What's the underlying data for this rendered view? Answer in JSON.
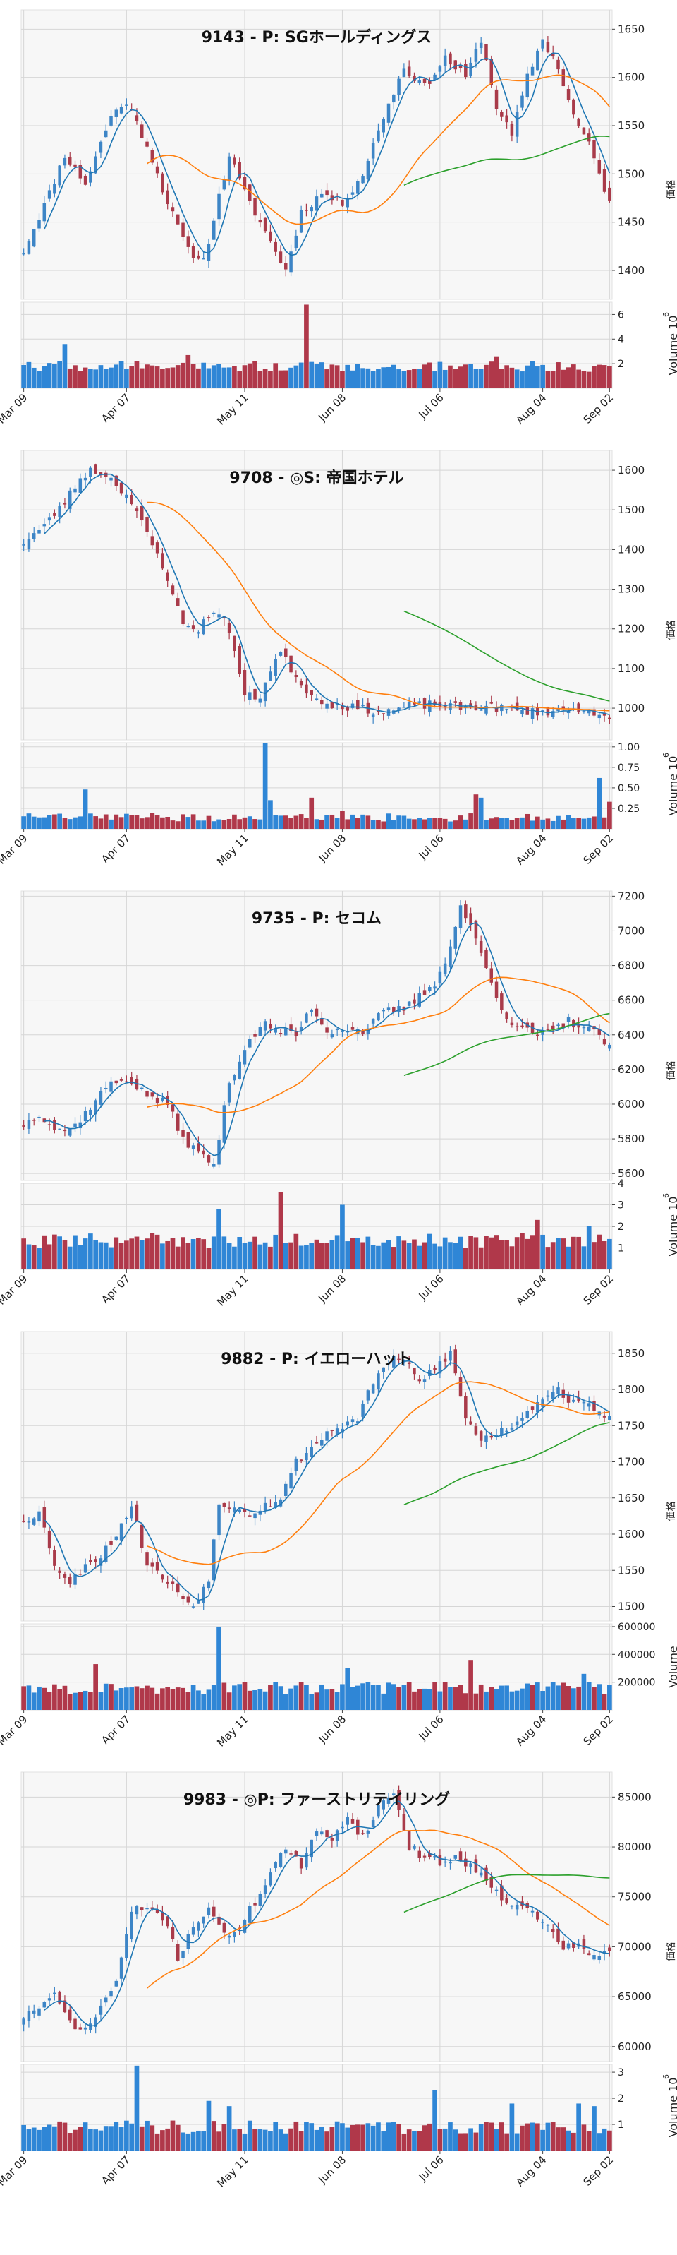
{
  "colors": {
    "up": "#3d85c6",
    "down": "#a93b4a",
    "vol_up": "#2f86d6",
    "vol_down": "#b0384a",
    "ma5": "#1f77b4",
    "ma25": "#ff7f0e",
    "ma75": "#2ca02c",
    "panel_bg": "#f7f7f7",
    "grid": "#d6d6d6"
  },
  "x_tick_labels": [
    "Mar 09",
    "Apr 07",
    "May 11",
    "Jun 08",
    "Jul 06",
    "Aug 04",
    "Sep 02"
  ],
  "chart_data": [
    {
      "type": "candlestick",
      "title": "9143 - P: SGホールディングス",
      "ylabel": "価格",
      "vol_label": "Volume",
      "vol_exp": "6",
      "ylim": [
        1370,
        1670
      ],
      "yticks": [
        1400,
        1450,
        1500,
        1550,
        1600,
        1650
      ],
      "vol_ylim": [
        0,
        7
      ],
      "vol_ticks": [
        2,
        4,
        6
      ],
      "anchors": [
        [
          0,
          1420
        ],
        [
          5,
          1480
        ],
        [
          8,
          1520
        ],
        [
          12,
          1490
        ],
        [
          17,
          1560
        ],
        [
          20,
          1575
        ],
        [
          24,
          1530
        ],
        [
          28,
          1470
        ],
        [
          32,
          1420
        ],
        [
          35,
          1410
        ],
        [
          40,
          1520
        ],
        [
          43,
          1480
        ],
        [
          47,
          1440
        ],
        [
          51,
          1400
        ],
        [
          54,
          1460
        ],
        [
          58,
          1480
        ],
        [
          62,
          1470
        ],
        [
          66,
          1500
        ],
        [
          70,
          1560
        ],
        [
          74,
          1610
        ],
        [
          78,
          1590
        ],
        [
          82,
          1620
        ],
        [
          86,
          1600
        ],
        [
          89,
          1640
        ],
        [
          92,
          1570
        ],
        [
          95,
          1540
        ],
        [
          98,
          1600
        ],
        [
          101,
          1640
        ],
        [
          104,
          1610
        ],
        [
          107,
          1560
        ],
        [
          110,
          1530
        ],
        [
          114,
          1470
        ]
      ],
      "vol_base": 1.6,
      "vol_amp": 0.9,
      "vol_spikes": [
        [
          8,
          3.6
        ],
        [
          32,
          2.7
        ],
        [
          55,
          6.8
        ],
        [
          92,
          2.6
        ]
      ],
      "seed": 11
    },
    {
      "type": "candlestick",
      "title": "9708 - ◎S: 帝国ホテル",
      "ylabel": "価格",
      "vol_label": "Volume",
      "vol_exp": "6",
      "ylim": [
        920,
        1650
      ],
      "yticks": [
        1000,
        1100,
        1200,
        1300,
        1400,
        1500,
        1600
      ],
      "vol_ylim": [
        0,
        1.05
      ],
      "vol_ticks": [
        0.25,
        0.5,
        0.75,
        1.0
      ],
      "vol_tick_labels": [
        "0.25",
        "0.50",
        "0.75",
        "1.00"
      ],
      "anchors": [
        [
          0,
          1420
        ],
        [
          4,
          1460
        ],
        [
          8,
          1520
        ],
        [
          11,
          1580
        ],
        [
          13,
          1600
        ],
        [
          16,
          1590
        ],
        [
          20,
          1540
        ],
        [
          24,
          1440
        ],
        [
          28,
          1330
        ],
        [
          31,
          1210
        ],
        [
          34,
          1200
        ],
        [
          37,
          1250
        ],
        [
          40,
          1200
        ],
        [
          43,
          1030
        ],
        [
          46,
          1030
        ],
        [
          48,
          1100
        ],
        [
          50,
          1140
        ],
        [
          53,
          1080
        ],
        [
          56,
          1030
        ],
        [
          60,
          1010
        ],
        [
          65,
          1000
        ],
        [
          70,
          990
        ],
        [
          75,
          1005
        ],
        [
          80,
          1010
        ],
        [
          85,
          1000
        ],
        [
          90,
          1005
        ],
        [
          95,
          995
        ],
        [
          100,
          990
        ],
        [
          105,
          995
        ],
        [
          110,
          1000
        ],
        [
          114,
          965
        ]
      ],
      "vol_base": 0.12,
      "vol_amp": 0.1,
      "vol_spikes": [
        [
          12,
          0.48
        ],
        [
          47,
          1.05
        ],
        [
          48,
          0.35
        ],
        [
          56,
          0.38
        ],
        [
          62,
          0.22
        ],
        [
          88,
          0.42
        ],
        [
          89,
          0.38
        ],
        [
          112,
          0.62
        ],
        [
          114,
          0.33
        ]
      ],
      "seed": 23
    },
    {
      "type": "candlestick",
      "title": "9735 - P: セコム",
      "ylabel": "価格",
      "vol_label": "Volume",
      "vol_exp": "6",
      "ylim": [
        5560,
        7230
      ],
      "yticks": [
        5600,
        5800,
        6000,
        6200,
        6400,
        6600,
        6800,
        7000,
        7200
      ],
      "vol_ylim": [
        0,
        4
      ],
      "vol_ticks": [
        1,
        2,
        3,
        4
      ],
      "anchors": [
        [
          0,
          5880
        ],
        [
          3,
          5950
        ],
        [
          6,
          5860
        ],
        [
          9,
          5850
        ],
        [
          12,
          5950
        ],
        [
          16,
          6100
        ],
        [
          20,
          6150
        ],
        [
          24,
          6050
        ],
        [
          28,
          6000
        ],
        [
          31,
          5800
        ],
        [
          34,
          5720
        ],
        [
          37,
          5650
        ],
        [
          40,
          6130
        ],
        [
          44,
          6380
        ],
        [
          47,
          6460
        ],
        [
          50,
          6420
        ],
        [
          53,
          6400
        ],
        [
          56,
          6560
        ],
        [
          59,
          6420
        ],
        [
          62,
          6440
        ],
        [
          66,
          6420
        ],
        [
          70,
          6530
        ],
        [
          74,
          6550
        ],
        [
          77,
          6620
        ],
        [
          80,
          6700
        ],
        [
          83,
          6900
        ],
        [
          85,
          7150
        ],
        [
          88,
          6950
        ],
        [
          91,
          6700
        ],
        [
          94,
          6500
        ],
        [
          97,
          6430
        ],
        [
          100,
          6400
        ],
        [
          103,
          6420
        ],
        [
          106,
          6480
        ],
        [
          109,
          6440
        ],
        [
          112,
          6400
        ],
        [
          114,
          6320
        ]
      ],
      "vol_base": 1.2,
      "vol_amp": 0.7,
      "vol_spikes": [
        [
          38,
          2.8
        ],
        [
          50,
          3.6
        ],
        [
          62,
          3.0
        ],
        [
          100,
          2.3
        ],
        [
          110,
          2.0
        ]
      ],
      "seed": 37
    },
    {
      "type": "candlestick",
      "title": "9882 - P: イエローハット",
      "ylabel": "価格",
      "vol_label": "Volume",
      "vol_exp": "",
      "ylim": [
        1480,
        1880
      ],
      "yticks": [
        1500,
        1550,
        1600,
        1650,
        1700,
        1750,
        1800,
        1850
      ],
      "vol_ylim": [
        0,
        620000
      ],
      "vol_ticks": [
        200000,
        400000,
        600000
      ],
      "anchors": [
        [
          0,
          1620
        ],
        [
          3,
          1630
        ],
        [
          6,
          1560
        ],
        [
          9,
          1530
        ],
        [
          12,
          1560
        ],
        [
          15,
          1570
        ],
        [
          18,
          1600
        ],
        [
          21,
          1640
        ],
        [
          24,
          1560
        ],
        [
          27,
          1540
        ],
        [
          30,
          1520
        ],
        [
          33,
          1500
        ],
        [
          36,
          1540
        ],
        [
          38,
          1640
        ],
        [
          41,
          1640
        ],
        [
          44,
          1630
        ],
        [
          47,
          1640
        ],
        [
          50,
          1650
        ],
        [
          53,
          1700
        ],
        [
          56,
          1720
        ],
        [
          59,
          1740
        ],
        [
          62,
          1750
        ],
        [
          65,
          1760
        ],
        [
          68,
          1810
        ],
        [
          71,
          1840
        ],
        [
          74,
          1840
        ],
        [
          77,
          1810
        ],
        [
          80,
          1830
        ],
        [
          83,
          1850
        ],
        [
          86,
          1760
        ],
        [
          89,
          1730
        ],
        [
          92,
          1740
        ],
        [
          95,
          1750
        ],
        [
          98,
          1770
        ],
        [
          101,
          1790
        ],
        [
          104,
          1800
        ],
        [
          107,
          1780
        ],
        [
          110,
          1780
        ],
        [
          114,
          1760
        ]
      ],
      "vol_base": 140000,
      "vol_amp": 90000,
      "vol_spikes": [
        [
          14,
          330000
        ],
        [
          38,
          600000
        ],
        [
          63,
          300000
        ],
        [
          87,
          360000
        ],
        [
          109,
          260000
        ]
      ],
      "seed": 53
    },
    {
      "type": "candlestick",
      "title": "9983 - ◎P: ファーストリテイリング",
      "ylabel": "価格",
      "vol_label": "Volume",
      "vol_exp": "6",
      "ylim": [
        58500,
        87500
      ],
      "yticks": [
        60000,
        65000,
        70000,
        75000,
        80000,
        85000
      ],
      "vol_ylim": [
        0,
        3.3
      ],
      "vol_ticks": [
        1,
        2,
        3
      ],
      "anchors": [
        [
          0,
          63000
        ],
        [
          3,
          64000
        ],
        [
          6,
          65000
        ],
        [
          9,
          62500
        ],
        [
          12,
          61500
        ],
        [
          15,
          64000
        ],
        [
          18,
          66500
        ],
        [
          21,
          73500
        ],
        [
          24,
          74000
        ],
        [
          27,
          73000
        ],
        [
          30,
          69000
        ],
        [
          33,
          72000
        ],
        [
          36,
          74000
        ],
        [
          39,
          71000
        ],
        [
          42,
          72000
        ],
        [
          45,
          74500
        ],
        [
          48,
          77500
        ],
        [
          51,
          80000
        ],
        [
          54,
          78000
        ],
        [
          57,
          81500
        ],
        [
          60,
          81000
        ],
        [
          63,
          83000
        ],
        [
          66,
          81000
        ],
        [
          69,
          84000
        ],
        [
          72,
          85500
        ],
        [
          75,
          80000
        ],
        [
          78,
          79000
        ],
        [
          81,
          78500
        ],
        [
          84,
          79000
        ],
        [
          87,
          78000
        ],
        [
          90,
          77000
        ],
        [
          93,
          75000
        ],
        [
          96,
          74000
        ],
        [
          99,
          73500
        ],
        [
          102,
          72000
        ],
        [
          105,
          70000
        ],
        [
          108,
          70000
        ],
        [
          111,
          69000
        ],
        [
          114,
          69500
        ]
      ],
      "vol_base": 0.8,
      "vol_amp": 0.5,
      "vol_spikes": [
        [
          22,
          3.25
        ],
        [
          36,
          1.9
        ],
        [
          40,
          1.7
        ],
        [
          80,
          2.3
        ],
        [
          95,
          1.8
        ],
        [
          108,
          1.8
        ],
        [
          111,
          1.7
        ]
      ],
      "seed": 71
    }
  ]
}
